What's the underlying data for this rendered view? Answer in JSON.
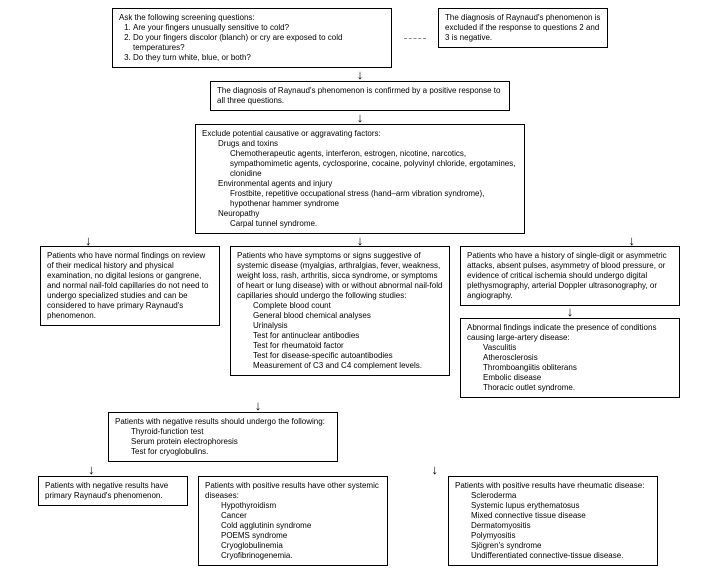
{
  "colors": {
    "border": "#000000",
    "bg": "#ffffff",
    "dash": "#888888"
  },
  "box1": {
    "title": "Ask the following screening questions:",
    "q1": "Are your fingers unusually sensitive to cold?",
    "q2": "Do your fingers discolor (blanch) or cry are exposed to cold temperatures?",
    "q3": "Do they turn white, blue, or both?"
  },
  "box1side": "The diagnosis of Raynaud's phenomenon is excluded if the response to questions 2 and 3 is negative.",
  "box2": "The diagnosis of Raynaud's phenomenon is confirmed by a positive response to all three questions.",
  "box3": {
    "title": "Exclude potential causative or aggravating factors:",
    "h1": "Drugs and toxins",
    "l1": "Chemotherapeutic agents, interferon, estrogen, nicotine, narcotics, sympathomimetic agents, cyclosporine, cocaine, polyvinyl chloride, ergotamines, clonidine",
    "h2": "Environmental agents and injury",
    "l2": "Frostbite, repetitive occupational stress (hand–arm vibration syndrome), hypothenar hammer syndrome",
    "h3": "Neuropathy",
    "l3": "Carpal tunnel syndrome."
  },
  "box4a": "Patients who have normal findings on review of their medical history and physical examination, no digital lesions or gangrene, and normal nail-fold capillaries do not need to undergo specialized studies and can be considered to have primary Raynaud's phenomenon.",
  "box4b": {
    "title": "Patients who have symptoms or signs suggestive of systemic disease (myalgias, arthralgias, fever, weakness, weight loss, rash, arthritis, sicca syndrome, or symptoms of heart or lung disease) with or without abnormal nail-fold capillaries should undergo the following studies:",
    "items": [
      "Complete blood count",
      "General blood chemical analyses",
      "Urinalysis",
      "Test for antinuclear antibodies",
      "Test for rheumatoid factor",
      "Test for disease-specific autoantibodies",
      "Measurement of C3 and C4 complement levels."
    ]
  },
  "box4c": "Patients who have a history of single-digit or asymmetric attacks, absent pulses, asymmetry of blood pressure, or evidence of critical ischemia should undergo digital plethysmography, arterial Doppler ultrasonography, or angiography.",
  "box5c": {
    "title": "Abnormal findings indicate the presence of conditions causing large-artery disease:",
    "items": [
      "Vasculitis",
      "Atherosclerosis",
      "Thromboangiitis obliterans",
      "Embolic disease",
      "Thoracic outlet syndrome."
    ]
  },
  "box5": {
    "title": "Patients with negative results should undergo the following:",
    "items": [
      "Thyroid-function test",
      "Serum protein electrophoresis",
      "Test for cryoglobulins."
    ]
  },
  "box6a": "Patients with negative results have primary Raynaud's phenomenon.",
  "box6b": {
    "title": "Patients with positive results have other systemic diseases:",
    "items": [
      "Hypothyroidism",
      "Cancer",
      "Cold agglutinin syndrome",
      "POEMS syndrome",
      "Cryoglobulinemia",
      "Cryofibrinogenemia."
    ]
  },
  "box7": {
    "title": "Patients with positive results have rheumatic disease:",
    "items": [
      "Scleroderma",
      "Systemic lupus erythematosus",
      "Mixed connective tissue disease",
      "Dermatomyositis",
      "Polymyositis",
      "Sjögren's syndrome",
      "Undifferentiated connective-tissue disease."
    ]
  }
}
